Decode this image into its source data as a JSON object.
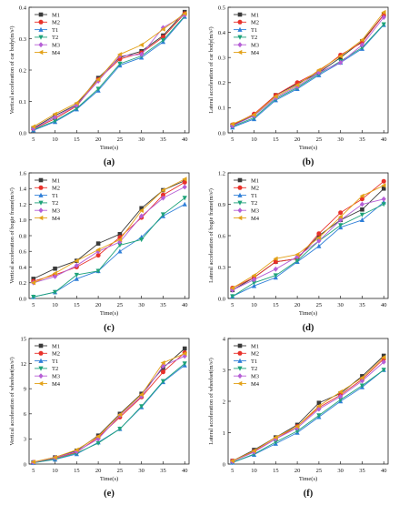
{
  "figure": {
    "colors": {
      "M1": "#3a3a3a",
      "M2": "#e8312a",
      "T1": "#2f7fd8",
      "T2": "#1fa37a",
      "M3": "#b65fd6",
      "M4": "#e3a21a"
    }
  },
  "chart_data": [
    {
      "type": "line",
      "panel_label": "(a)",
      "xlabel": "Time(s)",
      "ylabel": "Vertical acceleration of car body(m/s²)",
      "x": [
        5,
        10,
        15,
        20,
        25,
        30,
        35,
        40
      ],
      "xlim": [
        4,
        41
      ],
      "ylim": [
        0,
        0.4
      ],
      "yticks": [
        "0.0",
        "0.1",
        "0.2",
        "0.3",
        "0.4"
      ],
      "legend_position": "top-left",
      "series": [
        {
          "name": "M1",
          "marker": "square",
          "values": [
            0.015,
            0.055,
            0.09,
            0.175,
            0.24,
            0.26,
            0.31,
            0.385
          ]
        },
        {
          "name": "M2",
          "marker": "circle",
          "values": [
            0.012,
            0.045,
            0.085,
            0.17,
            0.235,
            0.255,
            0.305,
            0.38
          ]
        },
        {
          "name": "T1",
          "marker": "triangle-up",
          "values": [
            0.008,
            0.035,
            0.075,
            0.135,
            0.215,
            0.24,
            0.29,
            0.37
          ]
        },
        {
          "name": "T2",
          "marker": "triangle-down",
          "values": [
            0.01,
            0.038,
            0.078,
            0.14,
            0.22,
            0.245,
            0.295,
            0.372
          ]
        },
        {
          "name": "M3",
          "marker": "diamond",
          "values": [
            0.013,
            0.05,
            0.088,
            0.165,
            0.245,
            0.25,
            0.335,
            0.375
          ]
        },
        {
          "name": "M4",
          "marker": "triangle-left",
          "values": [
            0.02,
            0.06,
            0.095,
            0.17,
            0.25,
            0.28,
            0.33,
            0.38
          ]
        }
      ]
    },
    {
      "type": "line",
      "panel_label": "(b)",
      "xlabel": "Time(s)",
      "ylabel": "Lateral acceleration of car body(m/s²)",
      "x": [
        5,
        10,
        15,
        20,
        25,
        30,
        35,
        40
      ],
      "xlim": [
        4,
        41
      ],
      "ylim": [
        0,
        0.5
      ],
      "yticks": [
        "0.0",
        "0.1",
        "0.2",
        "0.3",
        "0.4",
        "0.5"
      ],
      "legend_position": "top-left",
      "series": [
        {
          "name": "M1",
          "marker": "square",
          "values": [
            0.03,
            0.07,
            0.15,
            0.195,
            0.24,
            0.3,
            0.365,
            0.47
          ]
        },
        {
          "name": "M2",
          "marker": "circle",
          "values": [
            0.032,
            0.075,
            0.15,
            0.2,
            0.245,
            0.31,
            0.36,
            0.47
          ]
        },
        {
          "name": "T1",
          "marker": "triangle-up",
          "values": [
            0.022,
            0.055,
            0.13,
            0.175,
            0.23,
            0.28,
            0.335,
            0.43
          ]
        },
        {
          "name": "T2",
          "marker": "triangle-down",
          "values": [
            0.025,
            0.06,
            0.135,
            0.18,
            0.235,
            0.285,
            0.34,
            0.432
          ]
        },
        {
          "name": "M3",
          "marker": "diamond",
          "values": [
            0.028,
            0.068,
            0.14,
            0.185,
            0.24,
            0.28,
            0.35,
            0.46
          ]
        },
        {
          "name": "M4",
          "marker": "triangle-left",
          "values": [
            0.035,
            0.072,
            0.145,
            0.19,
            0.25,
            0.305,
            0.37,
            0.48
          ]
        }
      ]
    },
    {
      "type": "line",
      "panel_label": "(c)",
      "xlabel": "Time(s)",
      "ylabel": "Vertical acceleration of bogie frame(m/s²)",
      "x": [
        5,
        10,
        15,
        20,
        25,
        30,
        35,
        40
      ],
      "xlim": [
        4,
        41
      ],
      "ylim": [
        0,
        1.6
      ],
      "yticks": [
        "0.0",
        "0.2",
        "0.4",
        "0.6",
        "0.8",
        "1.0",
        "1.2",
        "1.4",
        "1.6"
      ],
      "legend_position": "top-left",
      "series": [
        {
          "name": "M1",
          "marker": "square",
          "values": [
            0.25,
            0.38,
            0.48,
            0.7,
            0.82,
            1.15,
            1.38,
            1.5
          ]
        },
        {
          "name": "M2",
          "marker": "circle",
          "values": [
            0.22,
            0.3,
            0.4,
            0.55,
            0.78,
            1.03,
            1.32,
            1.48
          ]
        },
        {
          "name": "T1",
          "marker": "triangle-up",
          "values": [
            0.02,
            0.08,
            0.25,
            0.35,
            0.6,
            0.78,
            1.05,
            1.2
          ]
        },
        {
          "name": "T2",
          "marker": "triangle-down",
          "values": [
            0.02,
            0.08,
            0.3,
            0.35,
            0.68,
            0.75,
            1.07,
            1.28
          ]
        },
        {
          "name": "M3",
          "marker": "diamond",
          "values": [
            0.2,
            0.28,
            0.42,
            0.6,
            0.72,
            1.05,
            1.28,
            1.42
          ]
        },
        {
          "name": "M4",
          "marker": "triangle-left",
          "values": [
            0.2,
            0.32,
            0.48,
            0.62,
            0.75,
            1.12,
            1.38,
            1.52
          ]
        }
      ]
    },
    {
      "type": "line",
      "panel_label": "(d)",
      "xlabel": "Time(s)",
      "ylabel": "Lateral acceleration of bogie frame(m/s²)",
      "x": [
        5,
        10,
        15,
        20,
        25,
        30,
        35,
        40
      ],
      "xlim": [
        4,
        41
      ],
      "ylim": [
        0,
        1.2
      ],
      "yticks": [
        "0.0",
        "0.3",
        "0.6",
        "0.9",
        "1.2"
      ],
      "legend_position": "top-left",
      "series": [
        {
          "name": "M1",
          "marker": "square",
          "values": [
            0.08,
            0.2,
            0.35,
            0.38,
            0.6,
            0.75,
            0.85,
            1.05
          ]
        },
        {
          "name": "M2",
          "marker": "circle",
          "values": [
            0.1,
            0.2,
            0.35,
            0.38,
            0.62,
            0.82,
            0.95,
            1.12
          ]
        },
        {
          "name": "T1",
          "marker": "triangle-up",
          "values": [
            0.02,
            0.12,
            0.2,
            0.35,
            0.5,
            0.68,
            0.75,
            0.92
          ]
        },
        {
          "name": "T2",
          "marker": "triangle-down",
          "values": [
            0.02,
            0.15,
            0.22,
            0.36,
            0.55,
            0.7,
            0.8,
            0.9
          ]
        },
        {
          "name": "M3",
          "marker": "diamond",
          "values": [
            0.08,
            0.18,
            0.28,
            0.4,
            0.55,
            0.75,
            0.9,
            0.95
          ]
        },
        {
          "name": "M4",
          "marker": "triangle-left",
          "values": [
            0.1,
            0.22,
            0.38,
            0.42,
            0.58,
            0.78,
            0.98,
            1.08
          ]
        }
      ]
    },
    {
      "type": "line",
      "panel_label": "(e)",
      "xlabel": "Time(s)",
      "ylabel": "Vertical acceleration of wheelset(m/s²)",
      "x": [
        5,
        10,
        15,
        20,
        25,
        30,
        35,
        40
      ],
      "xlim": [
        4,
        41
      ],
      "ylim": [
        0,
        15
      ],
      "yticks": [
        "0",
        "3",
        "6",
        "9",
        "12",
        "15"
      ],
      "legend_position": "top-left",
      "series": [
        {
          "name": "M1",
          "marker": "square",
          "values": [
            0.2,
            0.8,
            1.6,
            3.4,
            6.0,
            8.4,
            11.5,
            13.8
          ]
        },
        {
          "name": "M2",
          "marker": "circle",
          "values": [
            0.2,
            0.7,
            1.4,
            3.2,
            5.6,
            8.0,
            11.0,
            13.3
          ]
        },
        {
          "name": "T1",
          "marker": "triangle-up",
          "values": [
            0.15,
            0.55,
            1.2,
            2.6,
            4.2,
            6.8,
            9.8,
            11.8
          ]
        },
        {
          "name": "T2",
          "marker": "triangle-down",
          "values": [
            0.15,
            0.6,
            1.3,
            2.5,
            4.2,
            6.9,
            9.9,
            12.0
          ]
        },
        {
          "name": "M3",
          "marker": "diamond",
          "values": [
            0.2,
            0.75,
            1.5,
            3.0,
            5.8,
            8.1,
            11.7,
            12.9
          ]
        },
        {
          "name": "M4",
          "marker": "triangle-left",
          "values": [
            0.25,
            0.8,
            1.7,
            3.3,
            5.9,
            8.3,
            12.1,
            13.2
          ]
        }
      ]
    },
    {
      "type": "line",
      "panel_label": "(f)",
      "xlabel": "Time(s)",
      "ylabel": "Lateral acceleration of wheelset(m/s²)",
      "x": [
        5,
        10,
        15,
        20,
        25,
        30,
        35,
        40
      ],
      "xlim": [
        4,
        41
      ],
      "ylim": [
        0,
        4
      ],
      "yticks": [
        "0",
        "1",
        "2",
        "3",
        "4"
      ],
      "legend_position": "top-left",
      "series": [
        {
          "name": "M1",
          "marker": "square",
          "values": [
            0.1,
            0.45,
            0.85,
            1.25,
            1.95,
            2.25,
            2.8,
            3.45
          ]
        },
        {
          "name": "M2",
          "marker": "circle",
          "values": [
            0.1,
            0.4,
            0.8,
            1.2,
            1.8,
            2.2,
            2.7,
            3.35
          ]
        },
        {
          "name": "T1",
          "marker": "triangle-up",
          "values": [
            0.05,
            0.3,
            0.65,
            1.0,
            1.5,
            2.0,
            2.45,
            3.0
          ]
        },
        {
          "name": "T2",
          "marker": "triangle-down",
          "values": [
            0.05,
            0.32,
            0.7,
            1.05,
            1.55,
            2.05,
            2.5,
            3.0
          ]
        },
        {
          "name": "M3",
          "marker": "diamond",
          "values": [
            0.08,
            0.38,
            0.8,
            1.15,
            1.75,
            2.15,
            2.65,
            3.25
          ]
        },
        {
          "name": "M4",
          "marker": "triangle-left",
          "values": [
            0.1,
            0.42,
            0.85,
            1.2,
            1.85,
            2.3,
            2.75,
            3.4
          ]
        }
      ]
    }
  ]
}
